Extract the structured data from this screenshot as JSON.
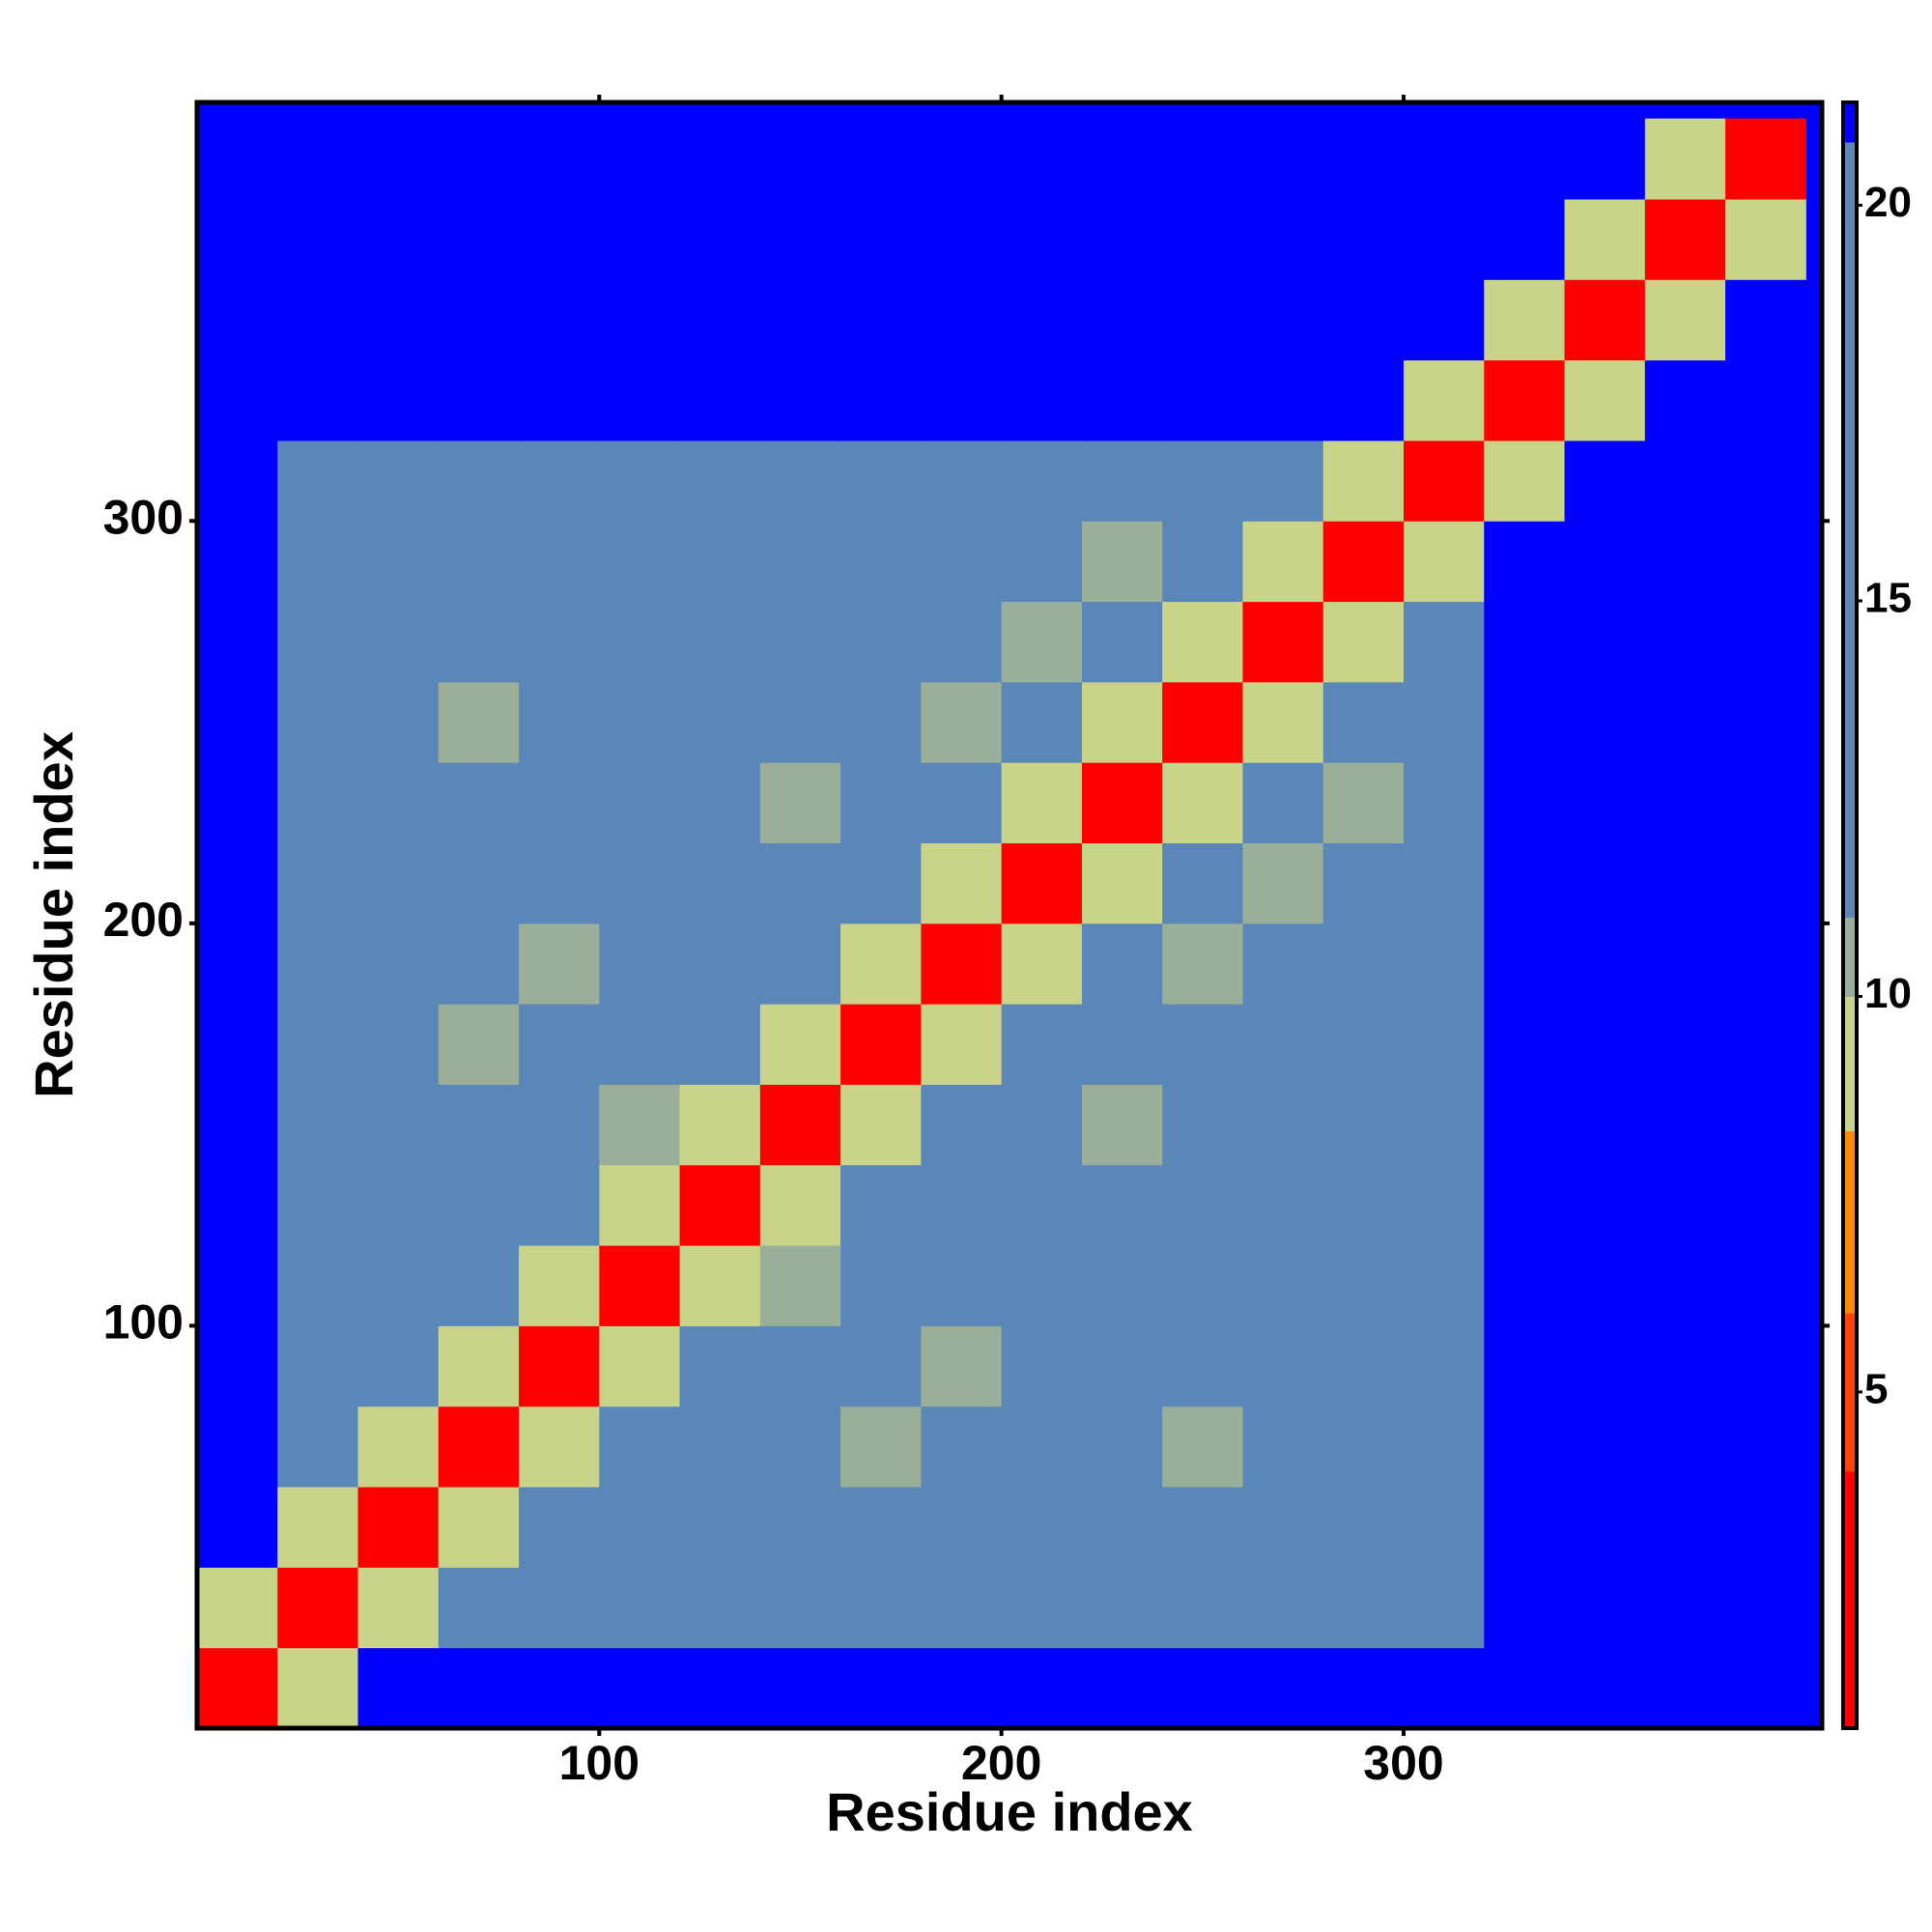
{
  "chart_data": {
    "type": "heatmap",
    "xlabel": "Residue index",
    "ylabel": "Residue index",
    "xlim": [
      0,
      404
    ],
    "ylim": [
      0,
      404
    ],
    "xticks": [
      100,
      200,
      300
    ],
    "yticks": [
      100,
      200,
      300
    ],
    "x_edges": [
      0,
      20,
      40,
      60,
      80,
      100,
      120,
      140,
      160,
      180,
      200,
      220,
      240,
      260,
      280,
      300,
      320,
      340,
      360,
      380,
      400
    ],
    "y_edges": [
      0,
      20,
      40,
      60,
      80,
      100,
      120,
      140,
      160,
      180,
      200,
      220,
      240,
      260,
      280,
      300,
      320,
      340,
      360,
      380,
      400
    ],
    "z": [
      [
        3,
        9,
        21,
        21,
        21,
        21,
        21,
        21,
        21,
        21,
        21,
        21,
        21,
        21,
        21,
        21,
        21,
        21,
        21,
        21
      ],
      [
        9,
        3,
        9,
        17,
        17,
        17,
        17,
        17,
        17,
        17,
        17,
        17,
        17,
        17,
        17,
        17,
        21,
        21,
        21,
        21
      ],
      [
        21,
        9,
        3,
        9,
        17,
        17,
        17,
        17,
        17,
        17,
        17,
        17,
        17,
        17,
        17,
        17,
        21,
        21,
        21,
        21
      ],
      [
        21,
        17,
        9,
        3,
        9,
        17,
        17,
        17,
        10,
        17,
        17,
        17,
        10,
        17,
        17,
        17,
        21,
        21,
        21,
        21
      ],
      [
        21,
        17,
        17,
        9,
        3,
        9,
        17,
        17,
        17,
        10,
        20,
        17,
        17,
        17,
        17,
        17,
        21,
        21,
        21,
        21
      ],
      [
        21,
        17,
        17,
        17,
        9,
        3,
        9,
        10,
        17,
        17,
        17,
        17,
        17,
        17,
        17,
        17,
        21,
        21,
        21,
        21
      ],
      [
        21,
        17,
        17,
        17,
        17,
        9,
        3,
        9,
        17,
        17,
        17,
        17,
        17,
        17,
        17,
        17,
        21,
        21,
        21,
        21
      ],
      [
        21,
        17,
        17,
        17,
        17,
        10,
        9,
        3,
        9,
        17,
        17,
        10,
        20,
        17,
        17,
        17,
        21,
        21,
        21,
        21
      ],
      [
        21,
        17,
        17,
        10,
        17,
        17,
        17,
        9,
        3,
        9,
        17,
        17,
        17,
        17,
        17,
        17,
        21,
        21,
        21,
        21
      ],
      [
        21,
        17,
        17,
        17,
        10,
        17,
        17,
        17,
        9,
        3,
        9,
        17,
        10,
        17,
        17,
        17,
        21,
        21,
        21,
        21
      ],
      [
        21,
        17,
        17,
        17,
        20,
        17,
        17,
        17,
        17,
        9,
        3,
        9,
        17,
        10,
        17,
        17,
        21,
        21,
        21,
        21
      ],
      [
        21,
        17,
        17,
        17,
        17,
        17,
        17,
        10,
        17,
        17,
        9,
        3,
        9,
        17,
        10,
        17,
        21,
        21,
        21,
        21
      ],
      [
        21,
        17,
        17,
        10,
        17,
        17,
        17,
        20,
        17,
        10,
        17,
        9,
        3,
        9,
        17,
        17,
        21,
        21,
        21,
        21
      ],
      [
        21,
        17,
        17,
        17,
        17,
        17,
        17,
        17,
        17,
        17,
        10,
        17,
        9,
        3,
        9,
        17,
        21,
        21,
        21,
        21
      ],
      [
        21,
        17,
        17,
        17,
        17,
        17,
        17,
        17,
        17,
        17,
        17,
        10,
        17,
        9,
        3,
        9,
        21,
        21,
        21,
        21
      ],
      [
        21,
        17,
        17,
        17,
        17,
        17,
        17,
        17,
        17,
        17,
        17,
        17,
        17,
        17,
        9,
        3,
        9,
        21,
        21,
        21
      ],
      [
        21,
        21,
        21,
        21,
        21,
        21,
        21,
        21,
        21,
        21,
        21,
        21,
        21,
        21,
        21,
        9,
        3,
        9,
        21,
        21
      ],
      [
        21,
        21,
        21,
        21,
        21,
        21,
        21,
        21,
        21,
        21,
        21,
        21,
        21,
        21,
        21,
        21,
        9,
        3,
        9,
        21
      ],
      [
        21,
        21,
        21,
        21,
        21,
        21,
        21,
        21,
        21,
        21,
        21,
        21,
        21,
        21,
        21,
        21,
        21,
        9,
        3,
        9
      ],
      [
        21,
        21,
        21,
        21,
        21,
        21,
        21,
        21,
        21,
        21,
        21,
        21,
        21,
        21,
        21,
        21,
        21,
        21,
        9,
        3
      ]
    ],
    "colorbar": {
      "lim": [
        0.75,
        21.3
      ],
      "ticks": [
        5,
        10,
        15,
        20
      ],
      "stops": [
        {
          "value": 0.75,
          "color": "#ff0000"
        },
        {
          "value": 4,
          "color": "#ff4500"
        },
        {
          "value": 6,
          "color": "#ff8c00"
        },
        {
          "value": 8.3,
          "color": "#c9d48a"
        },
        {
          "value": 10,
          "color": "#9aaf9a"
        },
        {
          "value": 11,
          "color": "#5b86b8"
        },
        {
          "value": 20.8,
          "color": "#0000ff"
        }
      ]
    }
  }
}
